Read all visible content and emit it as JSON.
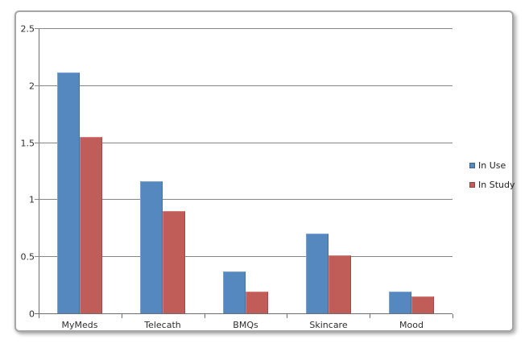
{
  "chart_data": {
    "type": "bar",
    "title": "",
    "xlabel": "",
    "ylabel": "",
    "categories": [
      "MyMeds",
      "Telecath",
      "BMQs",
      "Skincare",
      "Mood"
    ],
    "series": [
      {
        "name": "In Use",
        "color": "#5588be",
        "values": [
          2.11,
          1.16,
          0.37,
          0.7,
          0.19
        ]
      },
      {
        "name": "In Study",
        "color": "#c15d58",
        "values": [
          1.55,
          0.9,
          0.19,
          0.51,
          0.15
        ]
      }
    ],
    "ylim": [
      0,
      2.5
    ],
    "ytick_interval": 0.5,
    "ytick_labels": [
      "0",
      "0.5",
      "1",
      "1.5",
      "2",
      "2.5"
    ],
    "grid": true,
    "legend_position": "right",
    "legend_entries": [
      "In Use",
      "In Study"
    ]
  },
  "style_colors": {
    "gridline": "#858585",
    "axis": "#6e6e6e",
    "text": "#2e2e2e",
    "frame_border": "#a6a6a6",
    "background": "#ffffff"
  }
}
